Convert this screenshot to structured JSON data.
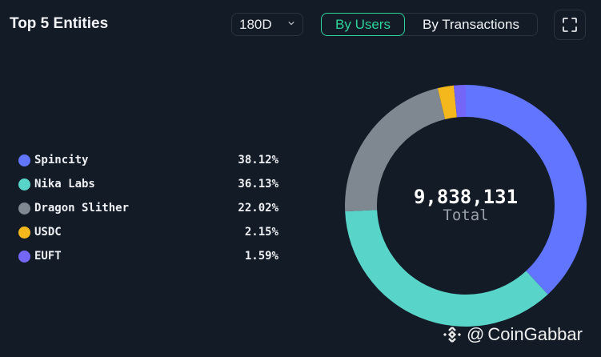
{
  "header": {
    "title": "Top 5 Entities",
    "range_selected": "180D",
    "toggle": {
      "options": [
        "By Users",
        "By Transactions"
      ],
      "active": "By Users"
    },
    "expand_icon": "expand-icon"
  },
  "legend": [
    {
      "name": "Spincity",
      "pct": "38.12%",
      "color": "#6175ff"
    },
    {
      "name": "Nika Labs",
      "pct": "36.13%",
      "color": "#58d4c8"
    },
    {
      "name": "Dragon Slither",
      "pct": "22.02%",
      "color": "#7f8891"
    },
    {
      "name": "USDC",
      "pct": "2.15%",
      "color": "#f5b81c"
    },
    {
      "name": "EUFT",
      "pct": "1.59%",
      "color": "#7466f7"
    }
  ],
  "center": {
    "total": "9,838,131",
    "label": "Total"
  },
  "watermark": {
    "at": "@",
    "text": "CoinGabbar",
    "icon": "binance-logo-icon"
  },
  "colors": {
    "background": "#131b26",
    "accent": "#2ed39a",
    "border": "#2a3441"
  },
  "chart_data": {
    "type": "pie",
    "subtype": "donut",
    "title": "Top 5 Entities",
    "categories": [
      "Spincity",
      "Nika Labs",
      "Dragon Slither",
      "USDC",
      "EUFT"
    ],
    "values": [
      38.12,
      36.13,
      22.02,
      2.15,
      1.59
    ],
    "unit": "%",
    "colors": [
      "#6175ff",
      "#58d4c8",
      "#7f8891",
      "#f5b81c",
      "#7466f7"
    ],
    "center_label": {
      "value": "9,838,131",
      "text": "Total"
    },
    "legend_position": "left",
    "filter": {
      "range": "180D",
      "metric": "By Users"
    }
  }
}
